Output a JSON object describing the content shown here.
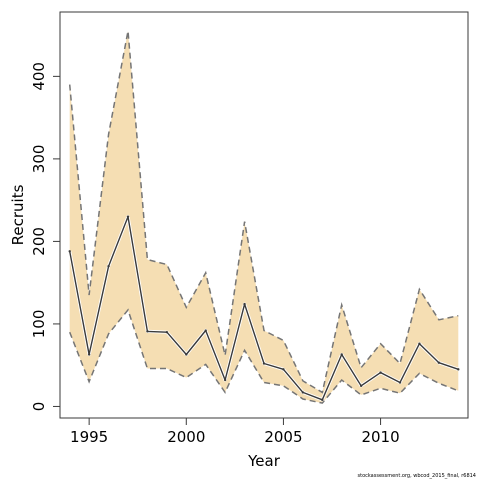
{
  "chart_data": {
    "type": "line",
    "title": "",
    "xlabel": "Year",
    "ylabel": "Recruits",
    "xlim": [
      1993.5,
      2014.5
    ],
    "ylim": [
      -14,
      478
    ],
    "x_ticks": [
      1995,
      2000,
      2005,
      2010
    ],
    "y_ticks": [
      0,
      100,
      200,
      300,
      400
    ],
    "x_tick_labels": [
      "1995",
      "2000",
      "2005",
      "2010"
    ],
    "y_tick_labels": [
      "0",
      "100",
      "200",
      "300",
      "400"
    ],
    "grid": false,
    "legend": "none",
    "x": [
      1994,
      1995,
      1996,
      1997,
      1998,
      1999,
      2000,
      2001,
      2002,
      2003,
      2004,
      2005,
      2006,
      2007,
      2008,
      2009,
      2010,
      2011,
      2012,
      2013,
      2014
    ],
    "series": [
      {
        "values": [
          188,
          63,
          170,
          230,
          91,
          90,
          63,
          92,
          32,
          124,
          52,
          45,
          17,
          8,
          63,
          25,
          41,
          29,
          76,
          53,
          45
        ]
      }
    ],
    "band": {
      "upper": [
        390,
        135,
        330,
        455,
        178,
        172,
        120,
        162,
        62,
        224,
        92,
        80,
        31,
        17,
        123,
        47,
        76,
        52,
        142,
        105,
        110
      ],
      "lower": [
        90,
        30,
        88,
        117,
        46,
        46,
        35,
        51,
        17,
        68,
        29,
        25,
        9,
        4,
        32,
        14,
        22,
        16,
        40,
        28,
        19
      ]
    },
    "colors": {
      "band_fill": "#f5deb3",
      "band_border": "#757575",
      "line": "#3a3a3a"
    }
  },
  "footnote": "stockassessment.org, wbcod_2015_final, r6814"
}
